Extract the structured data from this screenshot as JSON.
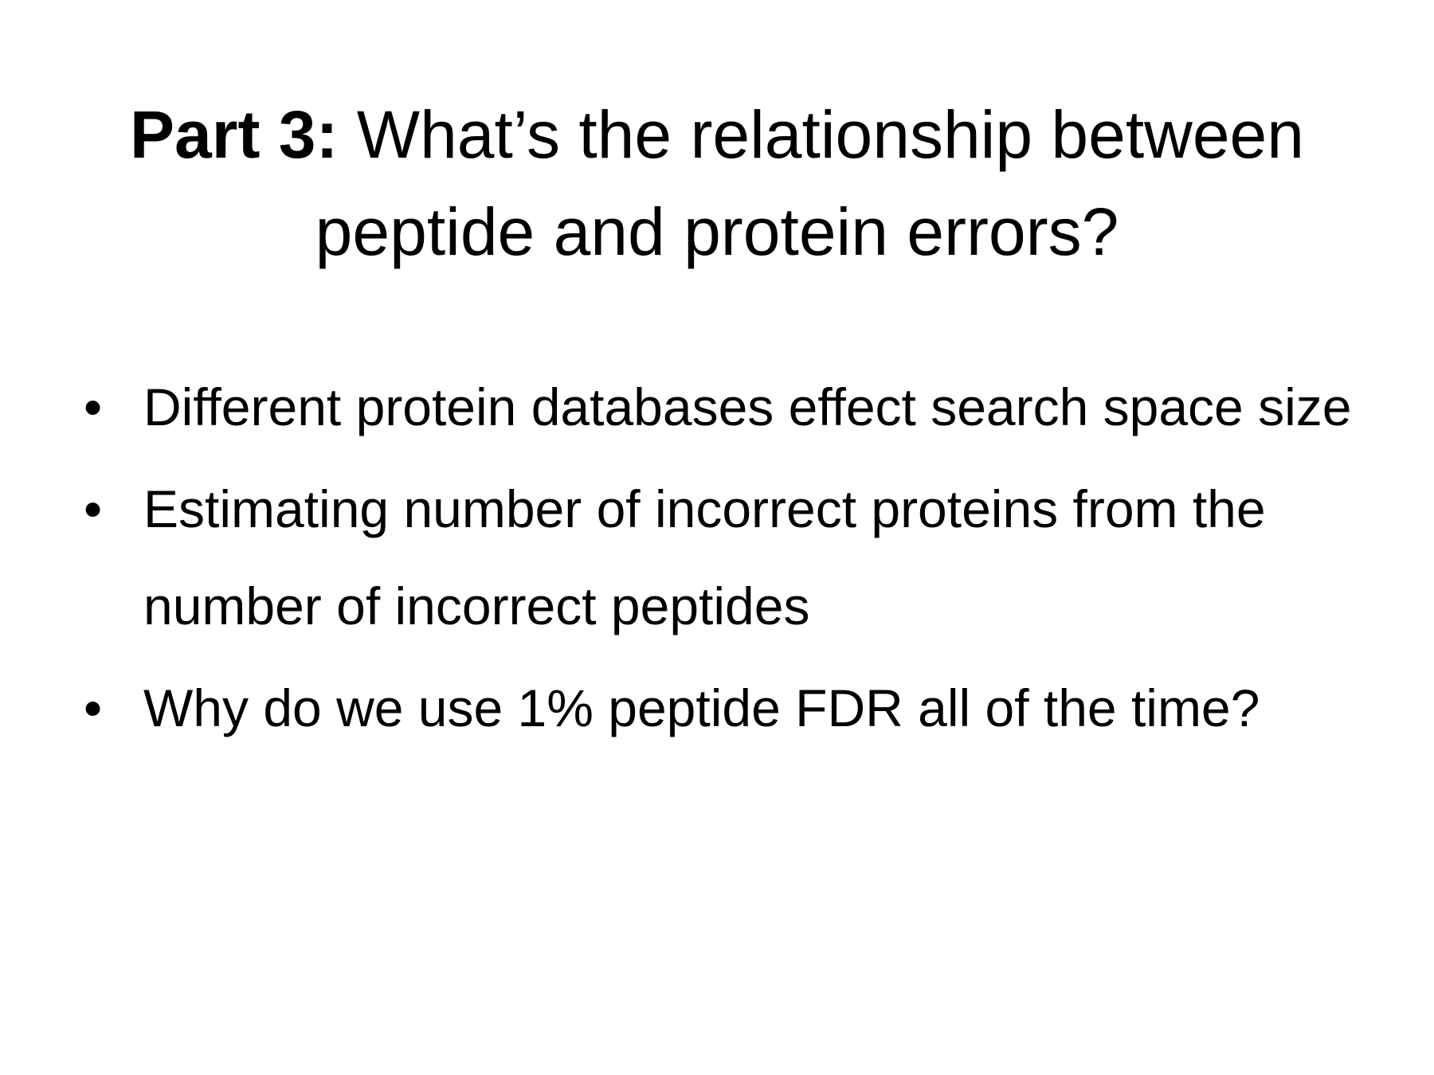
{
  "slide": {
    "title": {
      "bold_part": "Part 3:",
      "regular_part": "What’s the relationship between peptide and protein errors?"
    },
    "bullet_glyph": "•",
    "bullets": [
      {
        "text": "Different protein databases effect search space size"
      },
      {
        "text": "Estimating number of incorrect proteins from the number of incorrect peptides"
      },
      {
        "text": "Why do we use 1% peptide FDR all of the time?"
      }
    ]
  }
}
